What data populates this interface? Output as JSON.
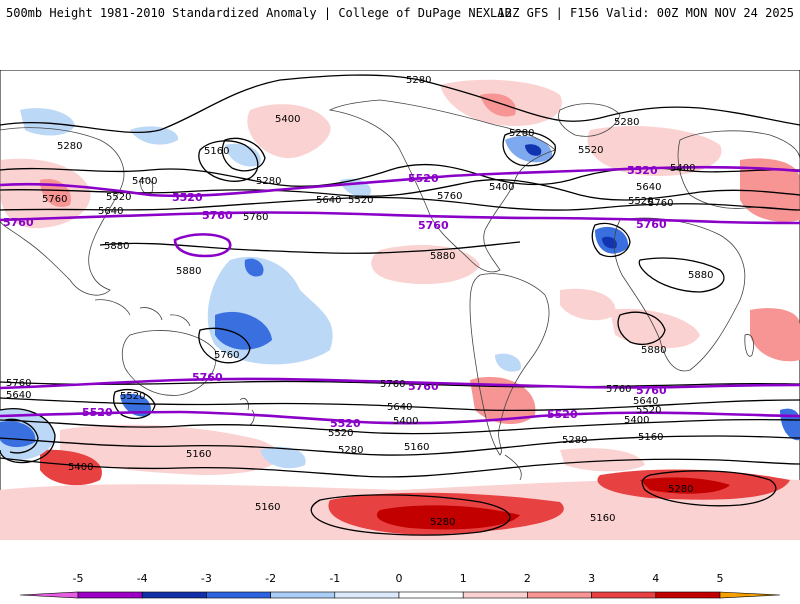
{
  "header": {
    "left_title": "500mb Height 1981-2010 Standardized Anomaly | College of DuPage NEXLAB",
    "right_title": "12Z GFS | F156 Valid: 00Z MON NOV 24 2025"
  },
  "colorbar": {
    "ticks": [
      "-5",
      "-4",
      "-3",
      "-2",
      "-1",
      "0",
      "1",
      "2",
      "3",
      "4",
      "5"
    ],
    "colors": [
      "#e35ee0",
      "#9b00c4",
      "#1130a8",
      "#2f63e0",
      "#a9cdf5",
      "#dbe9fb",
      "#ffffff",
      "#fbd2d2",
      "#f79595",
      "#e84141",
      "#c20000",
      "#f4a000",
      "#f7d43a"
    ]
  },
  "map": {
    "thin_contours": {
      "c5280": "5280",
      "c5160": "5160",
      "c5400": "5400",
      "c5520": "5520",
      "c5640": "5640",
      "c5760": "5760",
      "c5880": "5880"
    },
    "bold_contours": {
      "b5520": "5520",
      "b5760": "5760"
    },
    "colors": {
      "pos_light": "#fbd2d2",
      "pos_mid": "#f79595",
      "pos_strong": "#e84141",
      "pos_deep": "#c20000",
      "neg_light": "#bcd8f7",
      "neg_mid": "#7fa9ee",
      "neg_strong": "#3a6fe0",
      "neg_deep": "#1135b0",
      "contour": "#000000",
      "bold_contour": "#8a00c8",
      "coast": "#444444"
    }
  }
}
